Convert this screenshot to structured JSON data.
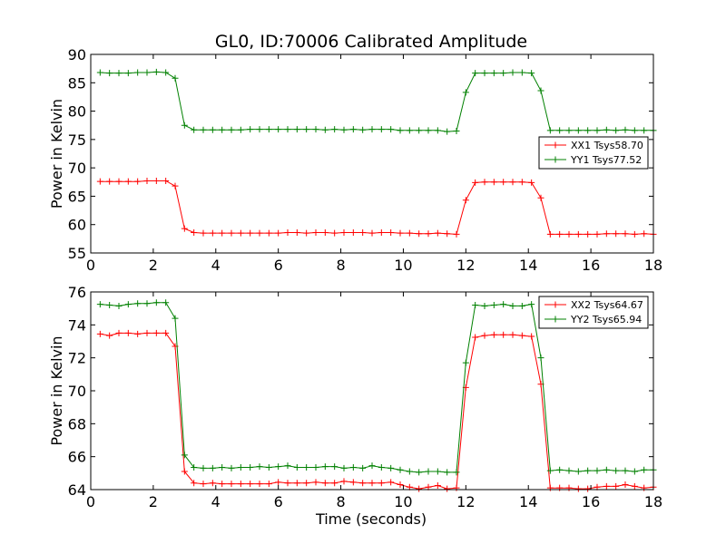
{
  "title": "GL0, ID:70006 Calibrated Amplitude",
  "xlabel": "Time (seconds)",
  "chart_data": [
    {
      "type": "line",
      "title": "GL0, ID:70006 Calibrated Amplitude",
      "xlabel": "",
      "ylabel": "Power in Kelvin",
      "xlim": [
        0,
        18
      ],
      "ylim": [
        55,
        90
      ],
      "xticks": [
        0,
        2,
        4,
        6,
        8,
        10,
        12,
        14,
        16,
        18
      ],
      "yticks": [
        55,
        60,
        65,
        70,
        75,
        80,
        85,
        90
      ],
      "grid": false,
      "legend_position": "center-right",
      "x": [
        0.3,
        0.6,
        0.9,
        1.2,
        1.5,
        1.8,
        2.1,
        2.4,
        2.7,
        3.0,
        3.3,
        3.6,
        3.9,
        4.2,
        4.5,
        4.8,
        5.1,
        5.4,
        5.7,
        6.0,
        6.3,
        6.6,
        6.9,
        7.2,
        7.5,
        7.8,
        8.1,
        8.4,
        8.7,
        9.0,
        9.3,
        9.6,
        9.9,
        10.2,
        10.5,
        10.8,
        11.1,
        11.4,
        11.7,
        12.0,
        12.3,
        12.6,
        12.9,
        13.2,
        13.5,
        13.8,
        14.1,
        14.4,
        14.7,
        15.0,
        15.3,
        15.6,
        15.9,
        16.2,
        16.5,
        16.8,
        17.1,
        17.4,
        17.7,
        18.0
      ],
      "series": [
        {
          "name": "XX1 Tsys58.70",
          "color": "#ff0000",
          "values": [
            67.6,
            67.6,
            67.6,
            67.6,
            67.6,
            67.7,
            67.7,
            67.7,
            66.8,
            59.3,
            58.6,
            58.5,
            58.5,
            58.5,
            58.5,
            58.5,
            58.5,
            58.5,
            58.5,
            58.5,
            58.6,
            58.6,
            58.5,
            58.6,
            58.6,
            58.5,
            58.6,
            58.6,
            58.6,
            58.5,
            58.6,
            58.6,
            58.5,
            58.5,
            58.4,
            58.4,
            58.5,
            58.4,
            58.3,
            64.3,
            67.4,
            67.5,
            67.5,
            67.5,
            67.5,
            67.5,
            67.4,
            64.7,
            58.3,
            58.3,
            58.3,
            58.3,
            58.3,
            58.3,
            58.4,
            58.4,
            58.4,
            58.3,
            58.4,
            58.3
          ]
        },
        {
          "name": "YY1 Tsys77.52",
          "color": "#008000",
          "values": [
            86.8,
            86.7,
            86.7,
            86.7,
            86.8,
            86.8,
            86.9,
            86.8,
            85.8,
            77.5,
            76.7,
            76.7,
            76.7,
            76.7,
            76.7,
            76.7,
            76.8,
            76.8,
            76.8,
            76.8,
            76.8,
            76.8,
            76.8,
            76.8,
            76.7,
            76.8,
            76.7,
            76.8,
            76.7,
            76.8,
            76.8,
            76.8,
            76.6,
            76.6,
            76.6,
            76.6,
            76.6,
            76.4,
            76.5,
            83.3,
            86.7,
            86.7,
            86.7,
            86.7,
            86.8,
            86.8,
            86.7,
            83.6,
            76.6,
            76.6,
            76.6,
            76.6,
            76.6,
            76.6,
            76.7,
            76.6,
            76.7,
            76.6,
            76.6,
            76.6
          ]
        }
      ]
    },
    {
      "type": "line",
      "title": "",
      "xlabel": "Time (seconds)",
      "ylabel": "Power in Kelvin",
      "xlim": [
        0,
        18
      ],
      "ylim": [
        64,
        76
      ],
      "xticks": [
        0,
        2,
        4,
        6,
        8,
        10,
        12,
        14,
        16,
        18
      ],
      "yticks": [
        64,
        66,
        68,
        70,
        72,
        74,
        76
      ],
      "grid": false,
      "legend_position": "top-right",
      "x": [
        0.3,
        0.6,
        0.9,
        1.2,
        1.5,
        1.8,
        2.1,
        2.4,
        2.7,
        3.0,
        3.3,
        3.6,
        3.9,
        4.2,
        4.5,
        4.8,
        5.1,
        5.4,
        5.7,
        6.0,
        6.3,
        6.6,
        6.9,
        7.2,
        7.5,
        7.8,
        8.1,
        8.4,
        8.7,
        9.0,
        9.3,
        9.6,
        9.9,
        10.2,
        10.5,
        10.8,
        11.1,
        11.4,
        11.7,
        12.0,
        12.3,
        12.6,
        12.9,
        13.2,
        13.5,
        13.8,
        14.1,
        14.4,
        14.7,
        15.0,
        15.3,
        15.6,
        15.9,
        16.2,
        16.5,
        16.8,
        17.1,
        17.4,
        17.7,
        18.0
      ],
      "series": [
        {
          "name": "XX2 Tsys64.67",
          "color": "#ff0000",
          "values": [
            73.45,
            73.35,
            73.5,
            73.5,
            73.45,
            73.5,
            73.5,
            73.5,
            72.7,
            65.1,
            64.4,
            64.35,
            64.4,
            64.35,
            64.35,
            64.35,
            64.35,
            64.35,
            64.35,
            64.45,
            64.4,
            64.4,
            64.4,
            64.45,
            64.4,
            64.4,
            64.5,
            64.45,
            64.4,
            64.4,
            64.4,
            64.45,
            64.3,
            64.15,
            64.05,
            64.15,
            64.25,
            64.05,
            64.1,
            70.2,
            73.25,
            73.35,
            73.4,
            73.4,
            73.4,
            73.35,
            73.3,
            70.4,
            64.1,
            64.1,
            64.1,
            64.05,
            64.05,
            64.15,
            64.2,
            64.2,
            64.3,
            64.2,
            64.1,
            64.15
          ]
        },
        {
          "name": "YY2 Tsys65.94",
          "color": "#008000",
          "values": [
            75.25,
            75.2,
            75.15,
            75.25,
            75.3,
            75.3,
            75.35,
            75.35,
            74.4,
            66.1,
            65.35,
            65.3,
            65.3,
            65.35,
            65.3,
            65.35,
            65.35,
            65.4,
            65.35,
            65.4,
            65.45,
            65.35,
            65.35,
            65.35,
            65.4,
            65.4,
            65.3,
            65.35,
            65.3,
            65.45,
            65.35,
            65.3,
            65.2,
            65.1,
            65.05,
            65.1,
            65.1,
            65.05,
            65.05,
            71.7,
            75.2,
            75.15,
            75.2,
            75.25,
            75.15,
            75.15,
            75.25,
            72.0,
            65.15,
            65.2,
            65.15,
            65.1,
            65.15,
            65.15,
            65.2,
            65.15,
            65.15,
            65.1,
            65.2,
            65.2
          ]
        }
      ]
    }
  ]
}
